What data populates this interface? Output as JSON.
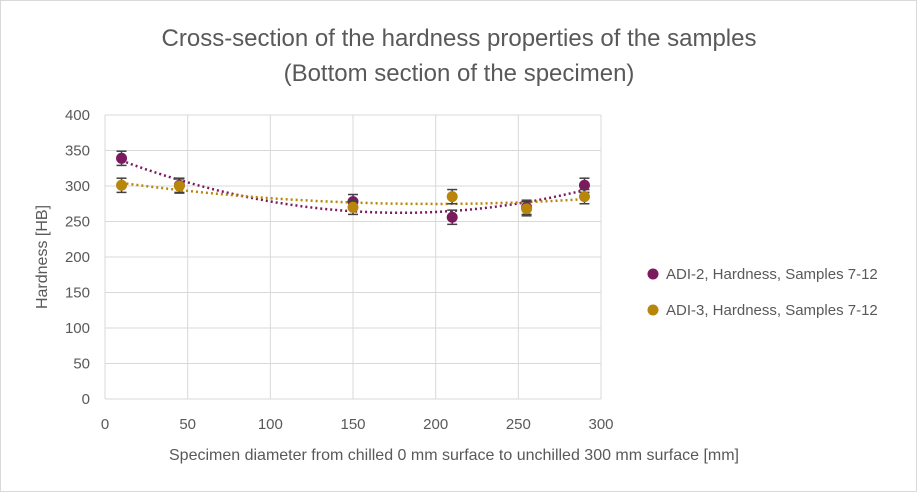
{
  "chart_data": {
    "type": "scatter",
    "title": [
      "Cross-section of the hardness properties of the samples",
      "(Bottom section of the specimen)"
    ],
    "xlabel": "Specimen diameter from chilled 0 mm surface to unchilled 300 mm surface [mm]",
    "ylabel": "Hardness [HB]",
    "xlim": [
      0,
      300
    ],
    "ylim": [
      0,
      400
    ],
    "x_ticks": [
      0,
      50,
      100,
      150,
      200,
      250,
      300
    ],
    "y_ticks": [
      0,
      50,
      100,
      150,
      200,
      250,
      300,
      350,
      400
    ],
    "grid": true,
    "legend_position": "right",
    "trendline": "polynomial, dotted",
    "series": [
      {
        "name": "ADI-2, Hardness, Samples 7-12",
        "color": "#7b1a5e",
        "x": [
          10,
          45,
          150,
          210,
          255,
          290
        ],
        "y": [
          339,
          301,
          278,
          256,
          270,
          301
        ],
        "error": [
          10,
          10,
          10,
          10,
          10,
          10
        ]
      },
      {
        "name": "ADI-3, Hardness, Samples 7-12",
        "color": "#b8860b",
        "x": [
          10,
          45,
          150,
          210,
          255,
          290
        ],
        "y": [
          301,
          300,
          270,
          285,
          268,
          285
        ],
        "error": [
          10,
          10,
          10,
          10,
          10,
          10
        ]
      }
    ]
  }
}
